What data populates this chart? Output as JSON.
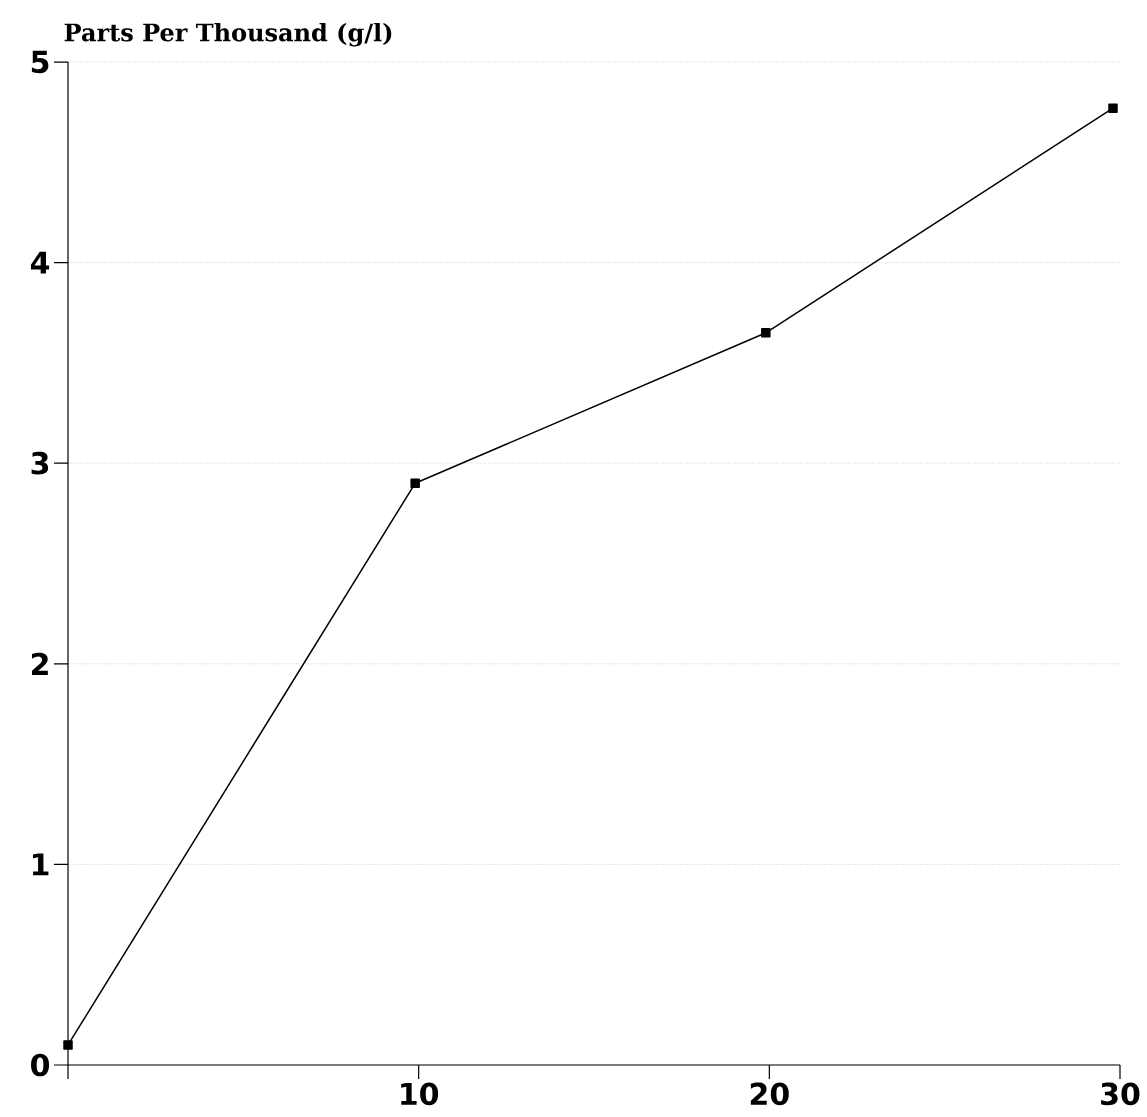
{
  "chart_data": {
    "type": "line",
    "ylabel": "Parts Per Thousand (g/l)",
    "x": [
      0,
      9.9,
      19.9,
      29.8
    ],
    "series": [
      {
        "color": "#000000",
        "values": [
          0.1,
          2.9,
          3.65,
          4.77
        ]
      }
    ],
    "xlim": [
      0,
      30
    ],
    "xticks": [
      {
        "value": 0,
        "label": null
      },
      10,
      20,
      30
    ],
    "ylim": [
      0,
      5
    ],
    "yticks": [
      0,
      1,
      2,
      3,
      4,
      5
    ],
    "grid": "y",
    "marker": "square",
    "line_style": "solid"
  }
}
